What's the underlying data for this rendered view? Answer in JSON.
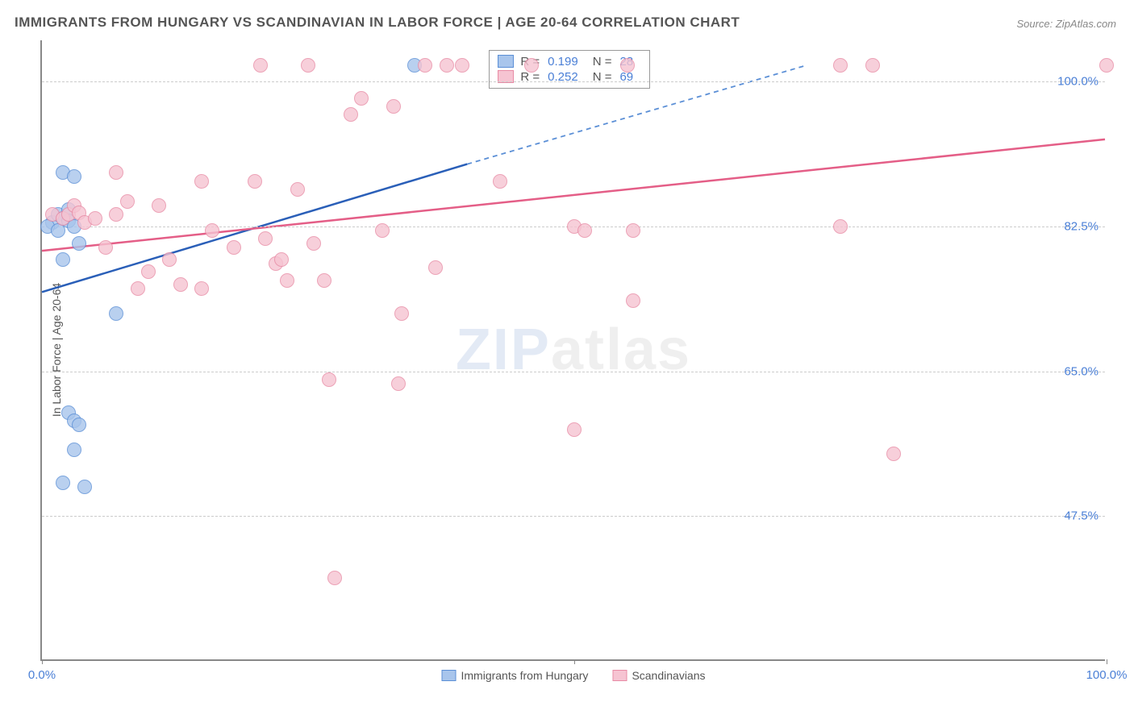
{
  "title": "IMMIGRANTS FROM HUNGARY VS SCANDINAVIAN IN LABOR FORCE | AGE 20-64 CORRELATION CHART",
  "source": "Source: ZipAtlas.com",
  "ylabel": "In Labor Force | Age 20-64",
  "watermark": {
    "part1": "ZIP",
    "part2": "atlas"
  },
  "chart": {
    "type": "scatter",
    "background_color": "#ffffff",
    "grid_color": "#cccccc",
    "axis_color": "#888888",
    "tick_label_color": "#4a7fd6",
    "tick_fontsize": 15,
    "label_fontsize": 14,
    "title_fontsize": 17,
    "xlim": [
      0,
      100
    ],
    "ylim": [
      30,
      105
    ],
    "yticks": [
      47.5,
      65.0,
      82.5,
      100.0
    ],
    "ytick_labels": [
      "47.5%",
      "65.0%",
      "82.5%",
      "100.0%"
    ],
    "xticks": [
      0,
      50,
      100
    ],
    "xtick_label_left": "0.0%",
    "xtick_label_right": "100.0%",
    "marker_radius": 9,
    "marker_stroke_width": 1.5,
    "marker_fill_opacity": 0.25,
    "line_width": 2.5,
    "series": [
      {
        "key": "hungary",
        "label": "Immigrants from Hungary",
        "color_stroke": "#5b8fd6",
        "color_fill": "#a8c5ec",
        "trend_color": "#2a5fb8",
        "trend_dash_color": "#5b8fd6",
        "R": "0.199",
        "N": "28",
        "trend": {
          "x1": 0,
          "y1": 74.5,
          "x2": 40,
          "y2": 90,
          "x3": 72,
          "y3": 102
        },
        "points": [
          [
            1,
            83
          ],
          [
            1.5,
            84
          ],
          [
            2,
            83.5
          ],
          [
            2.5,
            84.5
          ],
          [
            2.5,
            83.2
          ],
          [
            2,
            89
          ],
          [
            3,
            88.5
          ],
          [
            0.5,
            82.5
          ],
          [
            1.5,
            82
          ],
          [
            3,
            82.5
          ],
          [
            3.5,
            80.5
          ],
          [
            2,
            78.5
          ],
          [
            2.5,
            60
          ],
          [
            3,
            59
          ],
          [
            3.5,
            58.5
          ],
          [
            3,
            55.5
          ],
          [
            2,
            51.5
          ],
          [
            4,
            51
          ],
          [
            7,
            72
          ],
          [
            35,
            102
          ]
        ]
      },
      {
        "key": "scandinavian",
        "label": "Scandinavians",
        "color_stroke": "#e88ba5",
        "color_fill": "#f6c4d2",
        "trend_color": "#e45e87",
        "R": "0.252",
        "N": "69",
        "trend": {
          "x1": 0,
          "y1": 79.5,
          "x2": 100,
          "y2": 93
        },
        "points": [
          [
            1,
            84
          ],
          [
            2,
            83.5
          ],
          [
            2.5,
            84
          ],
          [
            3,
            85
          ],
          [
            3.5,
            84.2
          ],
          [
            4,
            83
          ],
          [
            5,
            83.5
          ],
          [
            6,
            80
          ],
          [
            7,
            84
          ],
          [
            8,
            85.5
          ],
          [
            9,
            75
          ],
          [
            10,
            77
          ],
          [
            11,
            85
          ],
          [
            12,
            78.5
          ],
          [
            13,
            75.5
          ],
          [
            7,
            89
          ],
          [
            15,
            75
          ],
          [
            16,
            82
          ],
          [
            18,
            80
          ],
          [
            15,
            88
          ],
          [
            20,
            88
          ],
          [
            20.5,
            102
          ],
          [
            21,
            81
          ],
          [
            22,
            78
          ],
          [
            23,
            76
          ],
          [
            22.5,
            78.5
          ],
          [
            24,
            87
          ],
          [
            25,
            102
          ],
          [
            25.5,
            80.5
          ],
          [
            26.5,
            76
          ],
          [
            27,
            64
          ],
          [
            27.5,
            40
          ],
          [
            29,
            96
          ],
          [
            30,
            98
          ],
          [
            32,
            82
          ],
          [
            33,
            97
          ],
          [
            33.5,
            63.5
          ],
          [
            33.8,
            72
          ],
          [
            36,
            102
          ],
          [
            38,
            102
          ],
          [
            39.5,
            102
          ],
          [
            37,
            77.5
          ],
          [
            43,
            88
          ],
          [
            46,
            102
          ],
          [
            50,
            82.5
          ],
          [
            51,
            82
          ],
          [
            55,
            102
          ],
          [
            55.5,
            73.5
          ],
          [
            55.5,
            82
          ],
          [
            50,
            58
          ],
          [
            75,
            102
          ],
          [
            78,
            102
          ],
          [
            80,
            55
          ],
          [
            75,
            82.5
          ],
          [
            100,
            102
          ]
        ]
      }
    ],
    "stats_box": {
      "left_pct": 42,
      "top_pct": 1.5
    },
    "bottom_legend": true
  }
}
